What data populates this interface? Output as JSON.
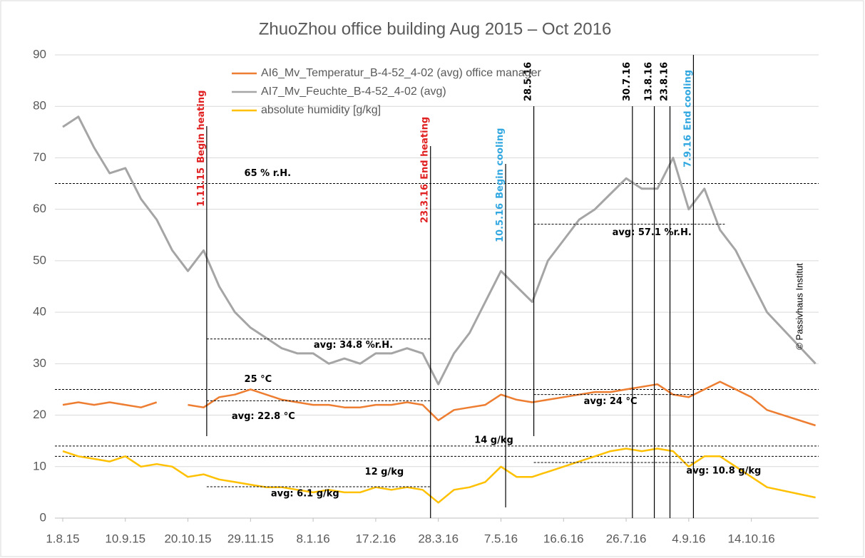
{
  "chart_data": {
    "type": "line",
    "title": "ZhuoZhou   office  building       Aug 2015 – Oct 2016",
    "x": [
      "2015-08-01",
      "2015-08-11",
      "2015-08-21",
      "2015-08-31",
      "2015-09-10",
      "2015-09-20",
      "2015-09-30",
      "2015-10-10",
      "2015-10-20",
      "2015-10-30",
      "2015-11-09",
      "2015-11-19",
      "2015-11-29",
      "2015-12-09",
      "2015-12-19",
      "2015-12-29",
      "2016-01-08",
      "2016-01-18",
      "2016-01-28",
      "2016-02-07",
      "2016-02-17",
      "2016-02-27",
      "2016-03-08",
      "2016-03-18",
      "2016-03-28",
      "2016-04-07",
      "2016-04-17",
      "2016-04-27",
      "2016-05-07",
      "2016-05-17",
      "2016-05-27",
      "2016-06-06",
      "2016-06-16",
      "2016-06-26",
      "2016-07-06",
      "2016-07-16",
      "2016-07-26",
      "2016-08-05",
      "2016-08-15",
      "2016-08-25",
      "2016-09-04",
      "2016-09-14",
      "2016-09-24",
      "2016-10-04",
      "2016-10-14",
      "2016-10-24",
      "2016-11-24"
    ],
    "series": [
      {
        "name": "AI6_Mv_Temperatur_B-4-52_4-02 (avg)   office manager",
        "color": "#ed7d31",
        "values": [
          22,
          22.5,
          22,
          22.5,
          22,
          21.5,
          22.5,
          null,
          22,
          21.5,
          23.5,
          24,
          25,
          24,
          23,
          22.5,
          22,
          22,
          21.5,
          21.5,
          22,
          22,
          22.5,
          22,
          19,
          21,
          21.5,
          22,
          24,
          23,
          22.5,
          23,
          23.5,
          24,
          24.5,
          24.5,
          25,
          25.5,
          26,
          24,
          23.5,
          25,
          26.5,
          25,
          23.5,
          21,
          18
        ]
      },
      {
        "name": "AI7_Mv_Feuchte_B-4-52_4-02 (avg)",
        "color": "#a5a5a5",
        "values": [
          76,
          78,
          72,
          67,
          68,
          62,
          58,
          52,
          48,
          52,
          45,
          40,
          37,
          35,
          33,
          32,
          32,
          30,
          31,
          30,
          32,
          32,
          33,
          32,
          26,
          32,
          36,
          42,
          48,
          45,
          42,
          50,
          54,
          58,
          60,
          63,
          66,
          64,
          64,
          70,
          60,
          64,
          56,
          52,
          46,
          40,
          30
        ]
      },
      {
        "name": "absolute humidity  [g/kg]",
        "color": "#ffc000",
        "values": [
          13,
          12,
          11.5,
          11,
          12,
          10,
          10.5,
          10,
          8,
          8.5,
          7.5,
          7,
          6.5,
          6,
          6,
          5.5,
          5,
          5.5,
          5,
          5,
          6,
          5.5,
          6,
          5.5,
          3,
          5.5,
          6,
          7,
          10,
          8,
          8,
          9,
          10,
          11,
          12,
          13,
          13.5,
          13,
          13.5,
          13,
          10,
          12,
          12,
          10,
          8,
          6,
          4
        ]
      }
    ],
    "xlim": [
      "2015-07-27",
      "2016-11-26"
    ],
    "xticks": [
      {
        "value": "2015-08-01",
        "label": "1.8.15"
      },
      {
        "value": "2015-09-10",
        "label": "10.9.15"
      },
      {
        "value": "2015-10-20",
        "label": "20.10.15"
      },
      {
        "value": "2015-11-29",
        "label": "29.11.15"
      },
      {
        "value": "2016-01-08",
        "label": "8.1.16"
      },
      {
        "value": "2016-02-17",
        "label": "17.2.16"
      },
      {
        "value": "2016-03-28",
        "label": "28.3.16"
      },
      {
        "value": "2016-05-07",
        "label": "7.5.16"
      },
      {
        "value": "2016-06-16",
        "label": "16.6.16"
      },
      {
        "value": "2016-07-26",
        "label": "26.7.16"
      },
      {
        "value": "2016-09-04",
        "label": "4.9.16"
      },
      {
        "value": "2016-10-14",
        "label": "14.10.16"
      }
    ],
    "ylim": [
      0,
      90
    ],
    "yticks": [
      0,
      10,
      20,
      30,
      40,
      50,
      60,
      70,
      80,
      90
    ],
    "grid": true,
    "reference_lines": [
      {
        "value": 65,
        "label": "65 % r.H."
      },
      {
        "value": 25,
        "label": "25 °C"
      },
      {
        "value": 14,
        "label": "14 g/kg"
      },
      {
        "value": 12,
        "label": "12 g/kg"
      }
    ],
    "averages": [
      {
        "value": 34.8,
        "label": "avg:  34.8 %r.H.",
        "start": "2015-11-01",
        "end": "2016-03-23"
      },
      {
        "value": 22.8,
        "label": "avg:  22.8 °C",
        "start": "2015-11-01",
        "end": "2016-03-23"
      },
      {
        "value": 6.1,
        "label": "avg:  6.1 g/kg",
        "start": "2015-11-01",
        "end": "2016-03-23"
      },
      {
        "value": 57.1,
        "label": "avg:  57.1 %r.H.",
        "start": "2016-05-28",
        "end": "2016-09-27"
      },
      {
        "value": 24,
        "label": "avg:  24 °C",
        "start": "2016-05-28",
        "end": "2016-09-07"
      },
      {
        "value": 10.8,
        "label": "avg:  10.8 g/kg",
        "start": "2016-05-28",
        "end": "2016-09-07"
      }
    ],
    "events": [
      {
        "date": "2015-11-01",
        "label": "1.11.15",
        "note": "Begin heating",
        "color": "#e02020"
      },
      {
        "date": "2016-03-23",
        "label": "23.3.16",
        "note": "End heating",
        "color": "#e02020"
      },
      {
        "date": "2016-05-10",
        "label": "10.5.16",
        "note": "Begin cooling",
        "color": "#33a8e0"
      },
      {
        "date": "2016-05-28",
        "label": "28.5.16",
        "color": "#000000"
      },
      {
        "date": "2016-07-30",
        "label": "30.7.16",
        "color": "#000000"
      },
      {
        "date": "2016-08-13",
        "label": "13.8.16",
        "color": "#000000"
      },
      {
        "date": "2016-08-23",
        "label": "23.8.16",
        "color": "#000000"
      },
      {
        "date": "2016-09-07",
        "label": "7.9.16",
        "note": "End cooling",
        "color": "#33a8e0"
      }
    ],
    "watermark": "© Passivhaus Institut"
  }
}
